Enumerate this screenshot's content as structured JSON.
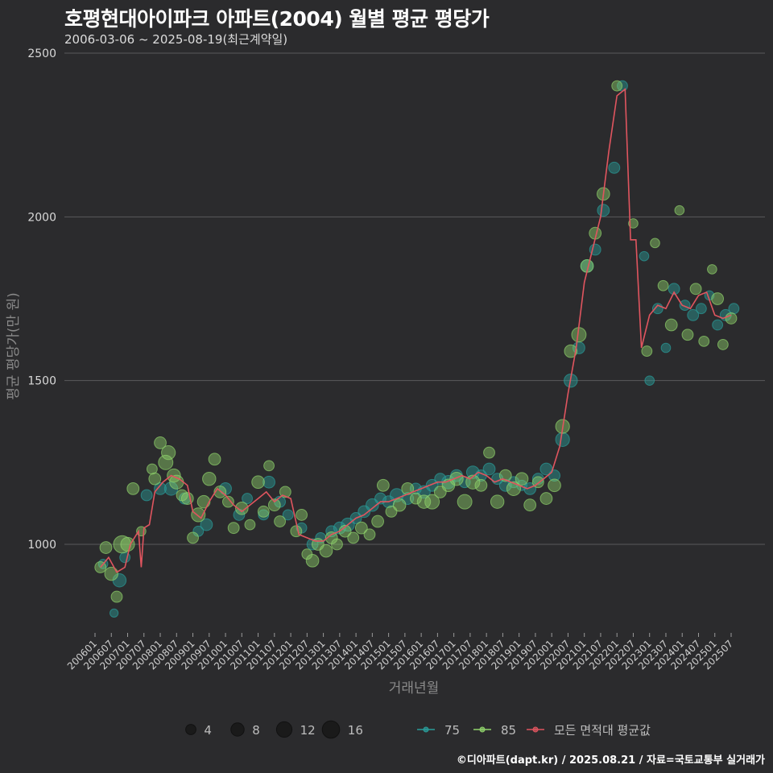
{
  "chart_data": {
    "type": "scatter+line",
    "title": "호평현대아이파크 아파트(2004) 월별 평균 평당가",
    "subtitle": "2006-03-06 ~ 2025-08-19(최근계약일)",
    "xlabel": "거래년월",
    "ylabel": "평균 평당가(만 원)",
    "ylim": [
      700,
      2500
    ],
    "yticks": [
      1000,
      1500,
      2000,
      2500
    ],
    "xticks": [
      "200601",
      "200607",
      "200701",
      "200707",
      "200801",
      "200807",
      "200901",
      "200907",
      "201001",
      "201007",
      "201101",
      "201107",
      "201201",
      "201207",
      "201301",
      "201307",
      "201401",
      "201407",
      "201501",
      "201507",
      "201601",
      "201607",
      "201701",
      "201707",
      "201801",
      "201807",
      "201901",
      "201907",
      "202001",
      "202007",
      "202101",
      "202107",
      "202201",
      "202207",
      "202301",
      "202307",
      "202401",
      "202407",
      "202501",
      "202507"
    ],
    "size_legend": {
      "values": [
        4,
        8,
        12,
        16
      ]
    },
    "color_legend": [
      {
        "label": "75",
        "color": "#2a9d9a"
      },
      {
        "label": "85",
        "color": "#8fd16b"
      },
      {
        "label": "모든 면적대 평균값",
        "color": "#e0555f"
      }
    ],
    "average_line": {
      "name": "모든 면적대 평균값",
      "points": [
        [
          "200603",
          930
        ],
        [
          "200606",
          960
        ],
        [
          "200609",
          915
        ],
        [
          "200612",
          930
        ],
        [
          "200702",
          1000
        ],
        [
          "200705",
          1040
        ],
        [
          "200706",
          930
        ],
        [
          "200707",
          1050
        ],
        [
          "200709",
          1060
        ],
        [
          "200711",
          1160
        ],
        [
          "200802",
          1190
        ],
        [
          "200805",
          1210
        ],
        [
          "200808",
          1200
        ],
        [
          "200811",
          1180
        ],
        [
          "200901",
          1100
        ],
        [
          "200904",
          1080
        ],
        [
          "200907",
          1130
        ],
        [
          "200910",
          1170
        ],
        [
          "201001",
          1150
        ],
        [
          "201004",
          1120
        ],
        [
          "201007",
          1100
        ],
        [
          "201010",
          1120
        ],
        [
          "201101",
          1140
        ],
        [
          "201104",
          1160
        ],
        [
          "201107",
          1130
        ],
        [
          "201110",
          1150
        ],
        [
          "201201",
          1140
        ],
        [
          "201204",
          1030
        ],
        [
          "201207",
          1020
        ],
        [
          "201210",
          1010
        ],
        [
          "201301",
          1010
        ],
        [
          "201304",
          1030
        ],
        [
          "201307",
          1040
        ],
        [
          "201310",
          1060
        ],
        [
          "201401",
          1080
        ],
        [
          "201404",
          1090
        ],
        [
          "201407",
          1110
        ],
        [
          "201410",
          1130
        ],
        [
          "201501",
          1130
        ],
        [
          "201504",
          1140
        ],
        [
          "201507",
          1150
        ],
        [
          "201510",
          1160
        ],
        [
          "201601",
          1170
        ],
        [
          "201604",
          1180
        ],
        [
          "201607",
          1190
        ],
        [
          "201610",
          1190
        ],
        [
          "201701",
          1200
        ],
        [
          "201704",
          1210
        ],
        [
          "201707",
          1200
        ],
        [
          "201710",
          1220
        ],
        [
          "201801",
          1210
        ],
        [
          "201804",
          1190
        ],
        [
          "201807",
          1200
        ],
        [
          "201810",
          1190
        ],
        [
          "201901",
          1180
        ],
        [
          "201904",
          1170
        ],
        [
          "201907",
          1180
        ],
        [
          "201910",
          1200
        ],
        [
          "202001",
          1220
        ],
        [
          "202004",
          1300
        ],
        [
          "202007",
          1460
        ],
        [
          "202010",
          1600
        ],
        [
          "202101",
          1800
        ],
        [
          "202104",
          1900
        ],
        [
          "202107",
          2000
        ],
        [
          "202110",
          2200
        ],
        [
          "202201",
          2370
        ],
        [
          "202204",
          2390
        ],
        [
          "202206",
          1930
        ],
        [
          "202208",
          1930
        ],
        [
          "202210",
          1600
        ],
        [
          "202301",
          1700
        ],
        [
          "202304",
          1730
        ],
        [
          "202307",
          1720
        ],
        [
          "202310",
          1770
        ],
        [
          "202401",
          1730
        ],
        [
          "202404",
          1720
        ],
        [
          "202407",
          1760
        ],
        [
          "202410",
          1770
        ],
        [
          "202501",
          1700
        ],
        [
          "202504",
          1690
        ],
        [
          "202507",
          1700
        ]
      ]
    },
    "series": [
      {
        "name": "75",
        "points": [
          [
            "200604",
            940,
            3
          ],
          [
            "200608",
            790,
            2
          ],
          [
            "200610",
            890,
            8
          ],
          [
            "200612",
            960,
            4
          ],
          [
            "200708",
            1150,
            5
          ],
          [
            "200801",
            1170,
            6
          ],
          [
            "200805",
            1170,
            8
          ],
          [
            "200810",
            1140,
            5
          ],
          [
            "200903",
            1040,
            4
          ],
          [
            "200906",
            1060,
            6
          ],
          [
            "201001",
            1170,
            6
          ],
          [
            "201006",
            1090,
            5
          ],
          [
            "201009",
            1140,
            4
          ],
          [
            "201103",
            1090,
            4
          ],
          [
            "201105",
            1190,
            6
          ],
          [
            "201109",
            1130,
            5
          ],
          [
            "201112",
            1090,
            4
          ],
          [
            "201205",
            1050,
            4
          ],
          [
            "201209",
            1000,
            5
          ],
          [
            "201212",
            1020,
            4
          ],
          [
            "201304",
            1040,
            5
          ],
          [
            "201307",
            1050,
            6
          ],
          [
            "201310",
            1060,
            8
          ],
          [
            "201401",
            1080,
            5
          ],
          [
            "201404",
            1100,
            6
          ],
          [
            "201407",
            1120,
            7
          ],
          [
            "201410",
            1140,
            5
          ],
          [
            "201501",
            1130,
            6
          ],
          [
            "201504",
            1150,
            8
          ],
          [
            "201508",
            1140,
            6
          ],
          [
            "201511",
            1170,
            5
          ],
          [
            "201602",
            1160,
            7
          ],
          [
            "201605",
            1180,
            6
          ],
          [
            "201608",
            1200,
            5
          ],
          [
            "201611",
            1190,
            8
          ],
          [
            "201702",
            1210,
            6
          ],
          [
            "201705",
            1190,
            5
          ],
          [
            "201708",
            1220,
            7
          ],
          [
            "201711",
            1210,
            5
          ],
          [
            "201802",
            1230,
            6
          ],
          [
            "201805",
            1200,
            5
          ],
          [
            "201808",
            1180,
            6
          ],
          [
            "201811",
            1190,
            5
          ],
          [
            "201902",
            1180,
            4
          ],
          [
            "201905",
            1170,
            6
          ],
          [
            "201908",
            1200,
            5
          ],
          [
            "201911",
            1230,
            6
          ],
          [
            "202002",
            1210,
            5
          ],
          [
            "202005",
            1320,
            9
          ],
          [
            "202008",
            1500,
            8
          ],
          [
            "202011",
            1600,
            6
          ],
          [
            "202102",
            1850,
            7
          ],
          [
            "202105",
            1900,
            5
          ],
          [
            "202108",
            2020,
            6
          ],
          [
            "202112",
            2150,
            5
          ],
          [
            "202203",
            2400,
            4
          ],
          [
            "202211",
            1880,
            3
          ],
          [
            "202301",
            1500,
            3
          ],
          [
            "202304",
            1720,
            4
          ],
          [
            "202307",
            1600,
            3
          ],
          [
            "202310",
            1780,
            5
          ],
          [
            "202402",
            1730,
            4
          ],
          [
            "202405",
            1700,
            5
          ],
          [
            "202408",
            1720,
            4
          ],
          [
            "202411",
            1760,
            3
          ],
          [
            "202502",
            1670,
            4
          ],
          [
            "202505",
            1700,
            5
          ],
          [
            "202508",
            1720,
            4
          ]
        ]
      },
      {
        "name": "85",
        "points": [
          [
            "200603",
            930,
            5
          ],
          [
            "200605",
            990,
            6
          ],
          [
            "200607",
            910,
            8
          ],
          [
            "200609",
            840,
            5
          ],
          [
            "200611",
            1000,
            16
          ],
          [
            "200701",
            1000,
            9
          ],
          [
            "200703",
            1170,
            6
          ],
          [
            "200706",
            1040,
            3
          ],
          [
            "200710",
            1230,
            4
          ],
          [
            "200711",
            1200,
            6
          ],
          [
            "200801",
            1310,
            6
          ],
          [
            "200803",
            1250,
            10
          ],
          [
            "200804",
            1280,
            9
          ],
          [
            "200806",
            1210,
            8
          ],
          [
            "200807",
            1190,
            9
          ],
          [
            "200809",
            1150,
            5
          ],
          [
            "200811",
            1140,
            6
          ],
          [
            "200901",
            1020,
            5
          ],
          [
            "200903",
            1090,
            9
          ],
          [
            "200905",
            1130,
            7
          ],
          [
            "200907",
            1200,
            8
          ],
          [
            "200909",
            1260,
            6
          ],
          [
            "200911",
            1160,
            6
          ],
          [
            "201002",
            1130,
            5
          ],
          [
            "201004",
            1050,
            5
          ],
          [
            "201007",
            1110,
            7
          ],
          [
            "201010",
            1060,
            4
          ],
          [
            "201101",
            1190,
            7
          ],
          [
            "201103",
            1100,
            5
          ],
          [
            "201105",
            1240,
            4
          ],
          [
            "201107",
            1120,
            6
          ],
          [
            "201109",
            1070,
            5
          ],
          [
            "201111",
            1160,
            5
          ],
          [
            "201203",
            1040,
            5
          ],
          [
            "201205",
            1090,
            5
          ],
          [
            "201207",
            970,
            4
          ],
          [
            "201209",
            950,
            7
          ],
          [
            "201211",
            1000,
            6
          ],
          [
            "201302",
            980,
            7
          ],
          [
            "201304",
            1020,
            6
          ],
          [
            "201306",
            1000,
            5
          ],
          [
            "201309",
            1040,
            6
          ],
          [
            "201312",
            1020,
            5
          ],
          [
            "201403",
            1050,
            6
          ],
          [
            "201406",
            1030,
            5
          ],
          [
            "201409",
            1070,
            6
          ],
          [
            "201411",
            1180,
            6
          ],
          [
            "201502",
            1100,
            5
          ],
          [
            "201505",
            1120,
            7
          ],
          [
            "201508",
            1170,
            6
          ],
          [
            "201511",
            1140,
            5
          ],
          [
            "201602",
            1130,
            8
          ],
          [
            "201605",
            1130,
            10
          ],
          [
            "201608",
            1160,
            6
          ],
          [
            "201611",
            1180,
            7
          ],
          [
            "201702",
            1200,
            8
          ],
          [
            "201705",
            1130,
            10
          ],
          [
            "201708",
            1190,
            9
          ],
          [
            "201711",
            1180,
            6
          ],
          [
            "201802",
            1280,
            5
          ],
          [
            "201805",
            1130,
            8
          ],
          [
            "201808",
            1210,
            6
          ],
          [
            "201811",
            1170,
            9
          ],
          [
            "201902",
            1200,
            7
          ],
          [
            "201905",
            1120,
            6
          ],
          [
            "201908",
            1190,
            5
          ],
          [
            "201911",
            1140,
            6
          ],
          [
            "202002",
            1180,
            7
          ],
          [
            "202005",
            1360,
            9
          ],
          [
            "202008",
            1590,
            7
          ],
          [
            "202011",
            1640,
            10
          ],
          [
            "202102",
            1850,
            7
          ],
          [
            "202105",
            1950,
            6
          ],
          [
            "202108",
            2070,
            7
          ],
          [
            "202201",
            2400,
            4
          ],
          [
            "202207",
            1980,
            3
          ],
          [
            "202212",
            1590,
            4
          ],
          [
            "202303",
            1920,
            3
          ],
          [
            "202306",
            1790,
            4
          ],
          [
            "202309",
            1670,
            6
          ],
          [
            "202312",
            2020,
            3
          ],
          [
            "202403",
            1640,
            5
          ],
          [
            "202406",
            1780,
            5
          ],
          [
            "202409",
            1620,
            4
          ],
          [
            "202412",
            1840,
            3
          ],
          [
            "202502",
            1750,
            6
          ],
          [
            "202504",
            1610,
            4
          ],
          [
            "202507",
            1690,
            5
          ]
        ]
      }
    ]
  },
  "caption": "©디아파트(dapt.kr) / 2025.08.21 / 자료=국토교통부 실거래가"
}
